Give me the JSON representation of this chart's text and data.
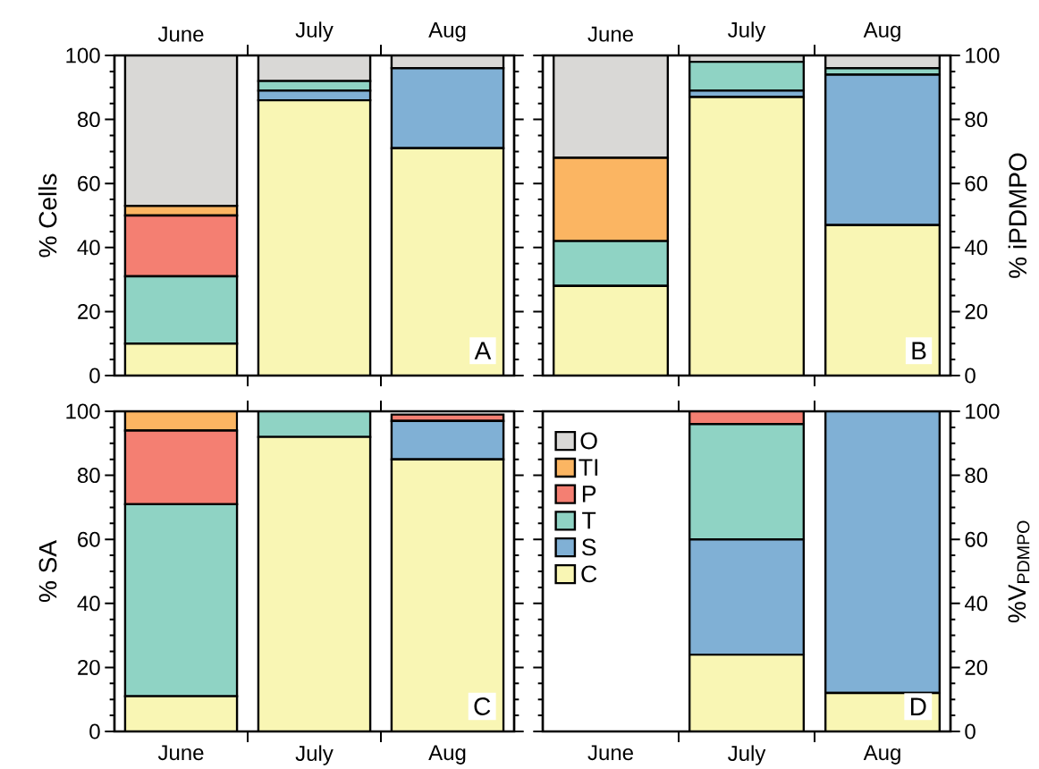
{
  "chart_data": [
    {
      "type": "bar",
      "stacked": true,
      "categories": [
        "June",
        "July",
        "Aug"
      ],
      "ylabel": "% Cells",
      "ylim": [
        0,
        100
      ],
      "yticks": [
        0,
        20,
        40,
        60,
        80,
        100
      ],
      "legend": false,
      "annotations": [
        "A"
      ],
      "series": [
        {
          "color": "#f9f6b4",
          "values": [
            10,
            86,
            71
          ]
        },
        {
          "color": "#80b0d5",
          "values": [
            0,
            3,
            25
          ]
        },
        {
          "color": "#8fd3c4",
          "values": [
            21,
            3,
            0
          ]
        },
        {
          "color": "#f47f72",
          "values": [
            19,
            0,
            0
          ]
        },
        {
          "color": "#fbb562",
          "values": [
            3,
            0,
            0
          ]
        },
        {
          "color": "#d9d8d6",
          "values": [
            47,
            8,
            4
          ]
        }
      ]
    },
    {
      "type": "bar",
      "stacked": true,
      "categories": [
        "June",
        "July",
        "Aug"
      ],
      "ylabel": "% iPDMPO",
      "ylim": [
        0,
        100
      ],
      "yticks": [
        0,
        20,
        40,
        60,
        80,
        100
      ],
      "legend": false,
      "annotations": [
        "B"
      ],
      "series": [
        {
          "color": "#f9f6b4",
          "values": [
            28,
            87,
            47
          ]
        },
        {
          "color": "#80b0d5",
          "values": [
            0,
            2,
            47
          ]
        },
        {
          "color": "#8fd3c4",
          "values": [
            14,
            9,
            2
          ]
        },
        {
          "color": "#f47f72",
          "values": [
            0,
            0,
            0
          ]
        },
        {
          "color": "#fbb562",
          "values": [
            26,
            0,
            0
          ]
        },
        {
          "color": "#d9d8d6",
          "values": [
            32,
            2,
            4
          ]
        }
      ]
    },
    {
      "type": "bar",
      "stacked": true,
      "categories": [
        "June",
        "July",
        "Aug"
      ],
      "ylabel": "% SA",
      "ylim": [
        0,
        100
      ],
      "yticks": [
        0,
        20,
        40,
        60,
        80,
        100
      ],
      "legend": false,
      "annotations": [
        "C"
      ],
      "series": [
        {
          "color": "#f9f6b4",
          "values": [
            11,
            92,
            85
          ]
        },
        {
          "color": "#80b0d5",
          "values": [
            0,
            0,
            12
          ]
        },
        {
          "color": "#8fd3c4",
          "values": [
            60,
            8,
            0
          ]
        },
        {
          "color": "#f47f72",
          "values": [
            23,
            0,
            2
          ]
        },
        {
          "color": "#fbb562",
          "values": [
            6,
            0,
            0
          ]
        },
        {
          "color": "#d9d8d6",
          "values": [
            0,
            0,
            0
          ]
        }
      ]
    },
    {
      "type": "bar",
      "stacked": true,
      "categories": [
        "June",
        "July",
        "Aug"
      ],
      "ylabel": "%V$_{PDMPO}$",
      "ylim": [
        0,
        100
      ],
      "yticks": [
        0,
        20,
        40,
        60,
        80,
        100
      ],
      "legend": "top left",
      "annotations": [
        "D"
      ],
      "series": [
        {
          "name": "C",
          "color": "#f9f6b4",
          "values": [
            null,
            24,
            12
          ]
        },
        {
          "name": "S",
          "color": "#80b0d5",
          "values": [
            null,
            36,
            88
          ]
        },
        {
          "name": "T",
          "color": "#8fd3c4",
          "values": [
            null,
            36,
            0
          ]
        },
        {
          "name": "P",
          "color": "#f47f72",
          "values": [
            null,
            4,
            0
          ]
        },
        {
          "name": "TI",
          "color": "#fbb562",
          "values": [
            null,
            0,
            0
          ]
        },
        {
          "name": "O",
          "color": "#d9d8d6",
          "values": [
            null,
            0,
            0
          ]
        }
      ]
    }
  ]
}
